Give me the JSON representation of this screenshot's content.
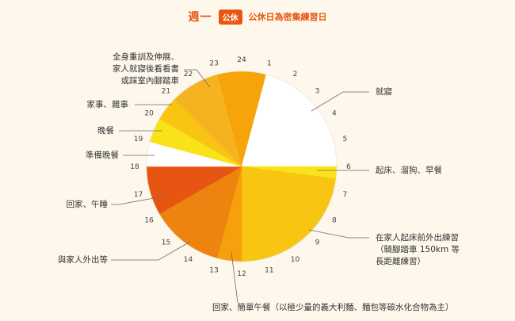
{
  "header": {
    "title": "週一",
    "badge": "公休",
    "subtitle": "公休日為密集練習日"
  },
  "chart_data": {
    "type": "pie",
    "hours": [
      "24",
      "1",
      "2",
      "3",
      "4",
      "5",
      "6",
      "7",
      "8",
      "9",
      "10",
      "11",
      "12",
      "13",
      "14",
      "15",
      "16",
      "17",
      "18",
      "19",
      "20",
      "21",
      "22",
      "23"
    ],
    "segments": [
      {
        "label": "全身重訓及伸展、家人就寢後看看書或踩室內腳踏車",
        "start": 23.0,
        "end": 24.0,
        "color": "#f6a40a"
      },
      {
        "label": "全身重訓及伸展、家人就寢後看看書或踩室內腳踏車",
        "start": 0.0,
        "end": 1.0,
        "color": "#f6a40a"
      },
      {
        "label": "就寢",
        "start": 1.0,
        "end": 6.0,
        "color": "#ffffff"
      },
      {
        "label": "起床、溜狗、早餐",
        "start": 6.0,
        "end": 6.5,
        "color": "#f9e21a"
      },
      {
        "label": "在家人起床前外出練習（騎腳踏車 150km 等長距離練習）",
        "start": 6.5,
        "end": 12.0,
        "color": "#f8c512"
      },
      {
        "label": "回家、簡單午餐（以極少量的義大利麵、麵包等碳水化合物為主）",
        "start": 12.0,
        "end": 13.0,
        "color": "#f6a00b"
      },
      {
        "label": "與家人外出等",
        "start": 13.0,
        "end": 16.0,
        "color": "#ee8410"
      },
      {
        "label": "回家、午睡",
        "start": 16.0,
        "end": 18.0,
        "color": "#e65612"
      },
      {
        "label": "準備晚餐",
        "start": 18.0,
        "end": 19.0,
        "color": "#ffffff"
      },
      {
        "label": "晚餐",
        "start": 19.0,
        "end": 20.0,
        "color": "#f9e21a"
      },
      {
        "label": "家事、雜事",
        "start": 20.0,
        "end": 21.0,
        "color": "#f8c512"
      },
      {
        "label": "全身重訓及伸展、家人就寢後看看書或踩室內腳踏車",
        "start": 21.0,
        "end": 23.0,
        "color": "#f5b320"
      }
    ]
  },
  "labels": {
    "sleep": "就寢",
    "wake": "起床、溜狗、早餐",
    "ride_1": "在家人起床前外出練習",
    "ride_2": "（騎腳踏車 150km 等",
    "ride_3": "長距離練習）",
    "lunch": "回家、簡單午餐（以極少量的義大利麵、麵包等碳水化合物為主）",
    "family": "與家人外出等",
    "nap": "回家、午睡",
    "prep": "準備晚餐",
    "dinner": "晚餐",
    "chores": "家事、雜事",
    "train_1": "全身重訓及伸展、",
    "train_2": "家人就寢後看看書",
    "train_3": "或踩室內腳踏車"
  },
  "colors": {
    "accent": "#e8560f",
    "leader": "#6b6b6b"
  }
}
